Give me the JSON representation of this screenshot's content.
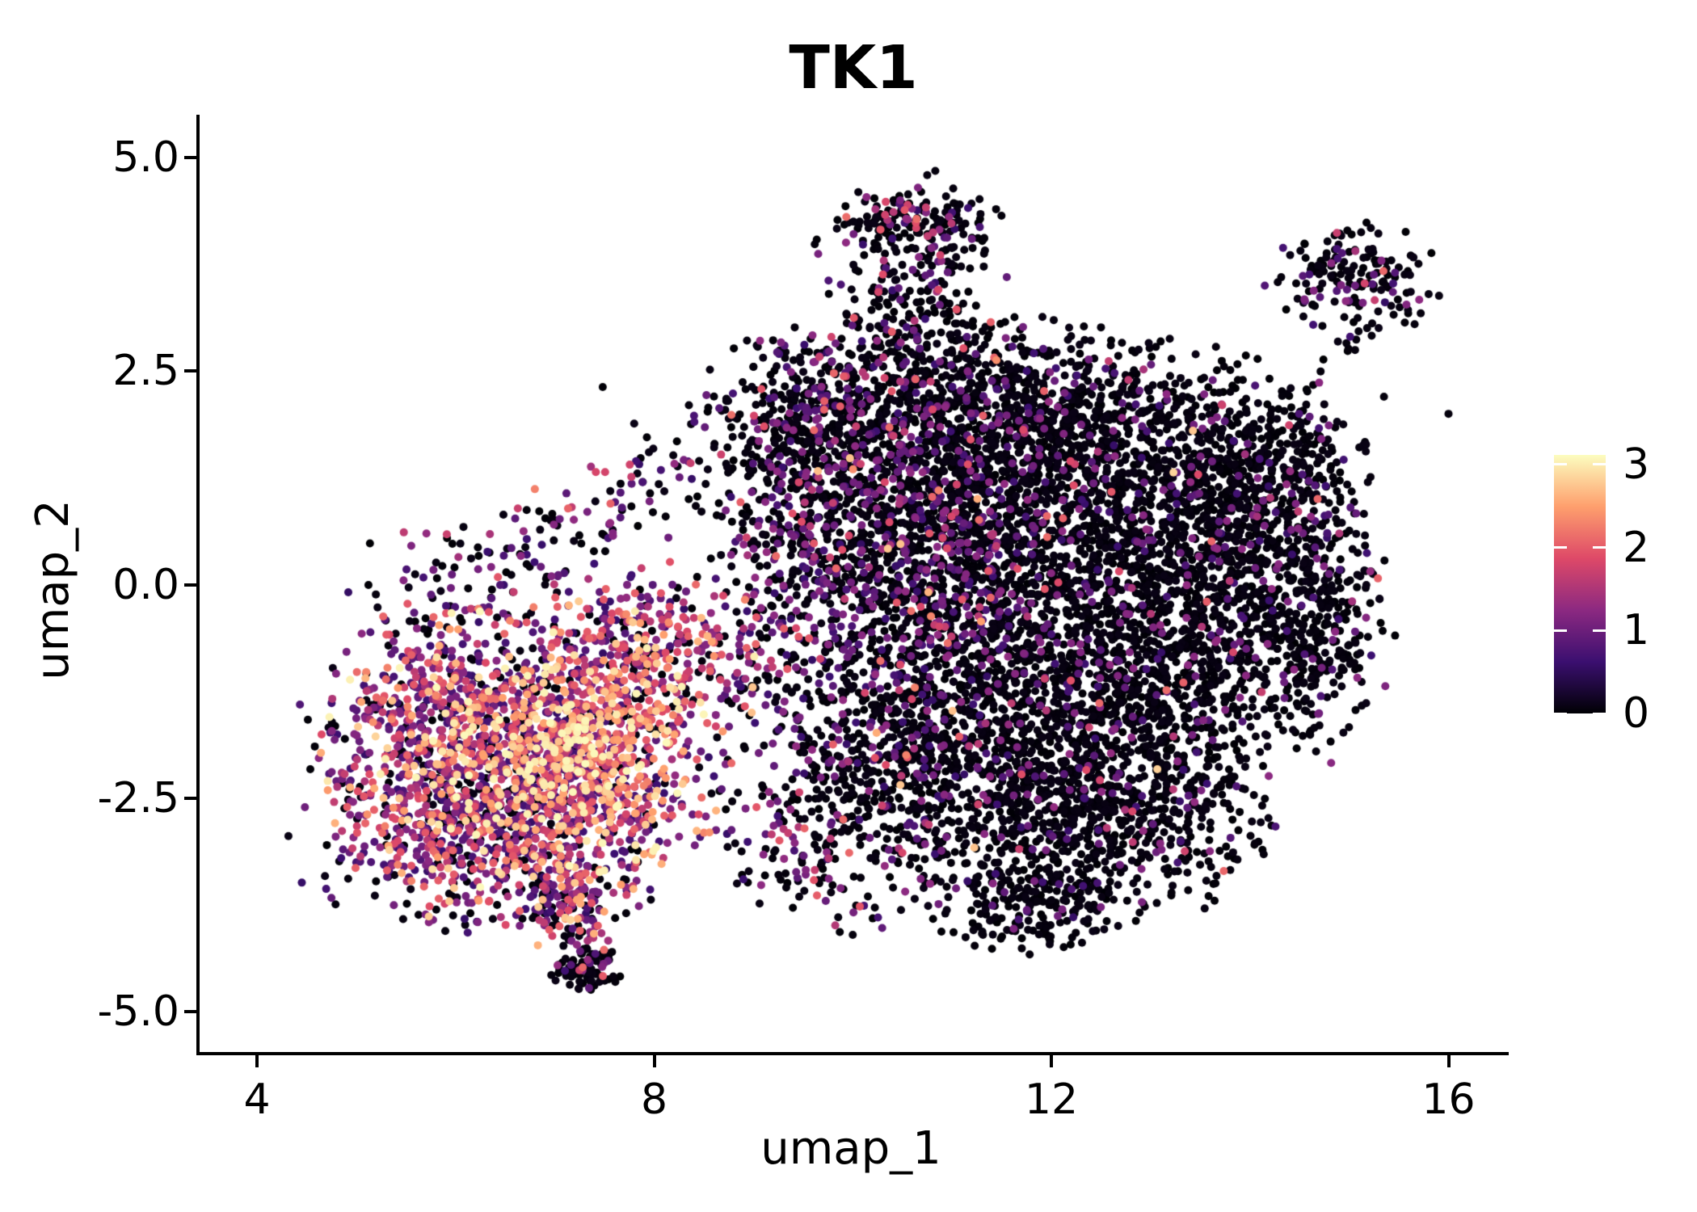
{
  "chart_data": {
    "type": "scatter",
    "subtype": "umap-feature-plot",
    "title": "TK1",
    "xlabel": "umap_1",
    "ylabel": "umap_2",
    "x_tick_labels": [
      "4",
      "8",
      "12",
      "16"
    ],
    "x_tick_values": [
      4,
      8,
      12,
      16
    ],
    "y_tick_labels": [
      "5.0",
      "2.5",
      "0.0",
      "-2.5",
      "-5.0"
    ],
    "y_tick_values": [
      5.0,
      2.5,
      0.0,
      -2.5,
      -5.0
    ],
    "xlim": [
      3.41,
      16.6
    ],
    "ylim": [
      -5.49,
      5.5
    ],
    "grid": false,
    "background": "#ffffff",
    "text_color": "#000000",
    "point_radius_px": 5,
    "colorbar": {
      "position": "right",
      "tick_labels": [
        "0",
        "1",
        "2",
        "3"
      ],
      "tick_values": [
        0,
        1,
        2,
        3
      ],
      "vmin": 0,
      "vmax": 3.12,
      "colormap": "magma",
      "gradient_stops": [
        [
          0.0,
          "#000004"
        ],
        [
          0.2,
          "#3b0f70"
        ],
        [
          0.4,
          "#8c2981"
        ],
        [
          0.6,
          "#de4968"
        ],
        [
          0.8,
          "#fe9f6d"
        ],
        [
          1.0,
          "#fcfdbf"
        ]
      ]
    },
    "representation": "generative-clusters",
    "value_ranges": {
      "black": [
        0.0,
        0.1
      ],
      "purple": [
        0.55,
        1.3
      ],
      "magenta": [
        1.4,
        2.15
      ],
      "orange": [
        2.25,
        2.85
      ],
      "yellow": [
        2.9,
        3.1
      ]
    },
    "clusters": [
      {
        "name": "left-main",
        "type": "gauss",
        "c": [
          6.7,
          -2.15
        ],
        "s": [
          0.95,
          0.92
        ],
        "n": 1500,
        "mix": {
          "black": 0.14,
          "purple": 0.34,
          "magenta": 0.3,
          "orange": 0.16,
          "yellow": 0.06
        }
      },
      {
        "name": "left-core-hot",
        "type": "gauss",
        "c": [
          7.35,
          -1.95
        ],
        "s": [
          0.48,
          0.55
        ],
        "n": 360,
        "mix": {
          "black": 0.04,
          "purple": 0.15,
          "magenta": 0.33,
          "orange": 0.32,
          "yellow": 0.16
        }
      },
      {
        "name": "left-nw",
        "type": "gauss",
        "c": [
          5.75,
          -1.6
        ],
        "s": [
          0.62,
          0.58
        ],
        "n": 260,
        "mix": {
          "black": 0.2,
          "purple": 0.46,
          "magenta": 0.26,
          "orange": 0.07,
          "yellow": 0.01
        }
      },
      {
        "name": "left-south-edge",
        "type": "gauss",
        "c": [
          6.3,
          -3.05
        ],
        "s": [
          0.95,
          0.5
        ],
        "n": 320,
        "mix": {
          "black": 0.28,
          "purple": 0.45,
          "magenta": 0.21,
          "orange": 0.05,
          "yellow": 0.01
        }
      },
      {
        "name": "left-ne-arm",
        "type": "gauss",
        "c": [
          7.95,
          -0.75
        ],
        "s": [
          0.55,
          0.5
        ],
        "n": 280,
        "mix": {
          "black": 0.18,
          "purple": 0.4,
          "magenta": 0.29,
          "orange": 0.11,
          "yellow": 0.02
        }
      },
      {
        "name": "left-tail",
        "type": "line",
        "p1": [
          7.0,
          -3.35
        ],
        "p2": [
          7.35,
          -4.3
        ],
        "jitter": 0.18,
        "n": 110,
        "mix": {
          "black": 0.35,
          "purple": 0.4,
          "magenta": 0.2,
          "orange": 0.05
        }
      },
      {
        "name": "tail-clump",
        "type": "gauss",
        "c": [
          7.32,
          -4.5
        ],
        "s": [
          0.17,
          0.13
        ],
        "n": 85,
        "mix": {
          "black": 0.9,
          "purple": 0.09,
          "magenta": 0.01
        }
      },
      {
        "name": "upper-sparse-band",
        "type": "line",
        "p1": [
          6.5,
          0.25
        ],
        "p2": [
          8.7,
          1.65
        ],
        "jitter": 0.35,
        "n": 120,
        "mix": {
          "black": 0.55,
          "purple": 0.35,
          "magenta": 0.09,
          "orange": 0.01
        }
      },
      {
        "name": "left-upper-sparse",
        "type": "gauss",
        "c": [
          6.1,
          0.1
        ],
        "s": [
          0.55,
          0.45
        ],
        "n": 70,
        "mix": {
          "black": 0.45,
          "purple": 0.4,
          "magenta": 0.15
        }
      },
      {
        "name": "right-1",
        "type": "gauss",
        "c": [
          11.0,
          1.25
        ],
        "s": [
          0.85,
          0.85
        ],
        "n": 850,
        "mix": {
          "black": 0.885,
          "purple": 0.1,
          "magenta": 0.013,
          "orange": 0.002
        }
      },
      {
        "name": "right-2",
        "type": "gauss",
        "c": [
          12.55,
          1.05
        ],
        "s": [
          1.0,
          0.8
        ],
        "n": 950,
        "mix": {
          "black": 0.885,
          "purple": 0.1,
          "magenta": 0.013,
          "orange": 0.002
        }
      },
      {
        "name": "right-3",
        "type": "gauss",
        "c": [
          13.85,
          0.3
        ],
        "s": [
          0.65,
          0.85
        ],
        "n": 650,
        "mix": {
          "black": 0.885,
          "purple": 0.1,
          "magenta": 0.013,
          "orange": 0.002
        }
      },
      {
        "name": "right-4",
        "type": "gauss",
        "c": [
          11.6,
          -0.75
        ],
        "s": [
          0.95,
          0.75
        ],
        "n": 750,
        "mix": {
          "black": 0.885,
          "purple": 0.1,
          "magenta": 0.013,
          "orange": 0.002
        }
      },
      {
        "name": "right-5",
        "type": "gauss",
        "c": [
          12.9,
          -1.3
        ],
        "s": [
          0.85,
          0.75
        ],
        "n": 750,
        "mix": {
          "black": 0.885,
          "purple": 0.1,
          "magenta": 0.013,
          "orange": 0.002
        }
      },
      {
        "name": "right-6",
        "type": "gauss",
        "c": [
          11.35,
          -2.4
        ],
        "s": [
          0.9,
          0.65
        ],
        "n": 650,
        "mix": {
          "black": 0.885,
          "purple": 0.1,
          "magenta": 0.013,
          "orange": 0.002
        }
      },
      {
        "name": "right-7",
        "type": "gauss",
        "c": [
          12.75,
          -2.75
        ],
        "s": [
          0.75,
          0.55
        ],
        "n": 450,
        "mix": {
          "black": 0.885,
          "purple": 0.1,
          "magenta": 0.013,
          "orange": 0.002
        }
      },
      {
        "name": "right-bottom-tip",
        "type": "gauss",
        "c": [
          11.8,
          -3.75
        ],
        "s": [
          0.5,
          0.3
        ],
        "n": 190,
        "mix": {
          "black": 0.93,
          "purple": 0.07
        }
      },
      {
        "name": "right-top-band",
        "type": "gauss",
        "c": [
          11.9,
          2.2
        ],
        "s": [
          1.15,
          0.45
        ],
        "n": 450,
        "mix": {
          "black": 0.86,
          "purple": 0.12,
          "magenta": 0.02
        }
      },
      {
        "name": "right-east-edge",
        "type": "gauss",
        "c": [
          14.7,
          -0.5
        ],
        "s": [
          0.35,
          0.75
        ],
        "n": 240,
        "mix": {
          "black": 0.91,
          "purple": 0.08,
          "magenta": 0.01
        }
      },
      {
        "name": "right-ne",
        "type": "gauss",
        "c": [
          14.25,
          1.35
        ],
        "s": [
          0.5,
          0.5
        ],
        "n": 240,
        "mix": {
          "black": 0.885,
          "purple": 0.1,
          "magenta": 0.015
        }
      },
      {
        "name": "west-edge-purple",
        "type": "gauss",
        "c": [
          9.95,
          0.3
        ],
        "s": [
          0.55,
          0.85
        ],
        "n": 340,
        "mix": {
          "black": 0.58,
          "purple": 0.33,
          "magenta": 0.08,
          "orange": 0.01
        }
      },
      {
        "name": "mid-purple-band",
        "type": "gauss",
        "c": [
          11.05,
          0.3
        ],
        "s": [
          0.5,
          0.75
        ],
        "n": 300,
        "mix": {
          "black": 0.55,
          "purple": 0.37,
          "magenta": 0.07,
          "orange": 0.01
        }
      },
      {
        "name": "south-transition",
        "type": "gauss",
        "c": [
          10.35,
          -1.8
        ],
        "s": [
          0.6,
          0.7
        ],
        "n": 340,
        "mix": {
          "black": 0.72,
          "purple": 0.22,
          "magenta": 0.05,
          "orange": 0.01
        }
      },
      {
        "name": "chimney",
        "type": "gauss",
        "c": [
          10.6,
          3.3
        ],
        "s": [
          0.5,
          0.72
        ],
        "n": 270,
        "mix": {
          "black": 0.8,
          "purple": 0.14,
          "magenta": 0.05,
          "orange": 0.01
        }
      },
      {
        "name": "chimney-top",
        "type": "gauss",
        "c": [
          10.65,
          4.25
        ],
        "s": [
          0.42,
          0.18
        ],
        "n": 120,
        "mix": {
          "black": 0.76,
          "purple": 0.15,
          "magenta": 0.08,
          "orange": 0.01
        }
      },
      {
        "name": "nw-shoulder",
        "type": "gauss",
        "c": [
          10.0,
          2.1
        ],
        "s": [
          0.5,
          0.5
        ],
        "n": 240,
        "mix": {
          "black": 0.75,
          "purple": 0.2,
          "magenta": 0.05
        }
      },
      {
        "name": "nw-fringe",
        "type": "gauss",
        "c": [
          9.3,
          1.6
        ],
        "s": [
          0.45,
          0.65
        ],
        "n": 280,
        "mix": {
          "black": 0.78,
          "purple": 0.18,
          "magenta": 0.04
        }
      },
      {
        "name": "west-sparse",
        "type": "gauss",
        "c": [
          9.3,
          0.0
        ],
        "s": [
          0.4,
          0.6
        ],
        "n": 90,
        "mix": {
          "black": 0.6,
          "purple": 0.3,
          "magenta": 0.1
        }
      },
      {
        "name": "satellite",
        "type": "gauss",
        "c": [
          15.05,
          3.55
        ],
        "s": [
          0.4,
          0.33
        ],
        "n": 165,
        "mix": {
          "black": 0.8,
          "purple": 0.17,
          "magenta": 0.03
        }
      },
      {
        "name": "satellite-trail",
        "type": "line",
        "p1": [
          14.7,
          2.35
        ],
        "p2": [
          15.1,
          3.0
        ],
        "jitter": 0.12,
        "n": 12,
        "mix": {
          "black": 0.85,
          "purple": 0.15
        }
      },
      {
        "name": "bridge-south",
        "type": "line",
        "p1": [
          8.75,
          -2.3
        ],
        "p2": [
          10.1,
          -3.3
        ],
        "jitter": 0.3,
        "n": 100,
        "mix": {
          "black": 0.5,
          "purple": 0.35,
          "magenta": 0.14,
          "orange": 0.01
        }
      },
      {
        "name": "bridge-mid",
        "type": "line",
        "p1": [
          8.8,
          -0.6
        ],
        "p2": [
          9.6,
          -1.8
        ],
        "jitter": 0.3,
        "n": 80,
        "mix": {
          "black": 0.45,
          "purple": 0.35,
          "magenta": 0.18,
          "orange": 0.02
        }
      },
      {
        "name": "south-sparse",
        "type": "line",
        "p1": [
          8.9,
          -3.3
        ],
        "p2": [
          10.3,
          -3.95
        ],
        "jitter": 0.2,
        "n": 45,
        "mix": {
          "black": 0.6,
          "purple": 0.3,
          "magenta": 0.1
        }
      }
    ],
    "outlier_points": [
      [
        14.9,
        0.6,
        1.5
      ],
      [
        14.55,
        1.05,
        0.05
      ],
      [
        16.0,
        2.0,
        0.05
      ],
      [
        15.35,
        2.2,
        0.05
      ],
      [
        4.8,
        -2.3,
        0.95
      ],
      [
        4.88,
        -2.62,
        0.05
      ],
      [
        5.0,
        -3.25,
        0.7
      ],
      [
        8.35,
        2.1,
        0.05
      ],
      [
        14.15,
        3.5,
        0.8
      ],
      [
        9.0,
        2.55,
        0.05
      ],
      [
        10.0,
        -4.1,
        0.05
      ],
      [
        12.45,
        -4.05,
        0.05
      ]
    ]
  }
}
